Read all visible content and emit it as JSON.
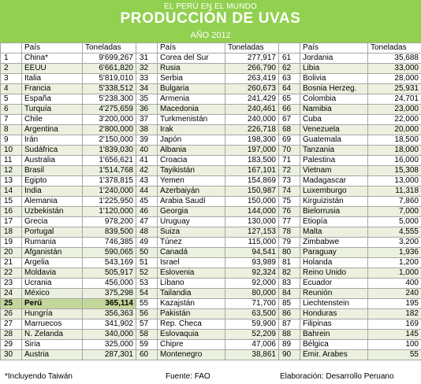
{
  "header": {
    "supertitle": "EL PERÚ EN EL MUNDO",
    "title": "PRODUCCIÓN  DE UVAS",
    "subtitle": "AÑO 2012"
  },
  "chart_data": {
    "type": "table",
    "columns": [
      "#",
      "País",
      "Toneladas"
    ],
    "highlight_rank": 25,
    "rows": [
      [
        1,
        "China*",
        "9'699,267"
      ],
      [
        2,
        "EEUU",
        "6'661,820"
      ],
      [
        3,
        "Italia",
        "5'819,010"
      ],
      [
        4,
        "Francia",
        "5'338,512"
      ],
      [
        5,
        "España",
        "5'238,300"
      ],
      [
        6,
        "Turquía",
        "4'275,659"
      ],
      [
        7,
        "Chile",
        "3'200,000"
      ],
      [
        8,
        "Argentina",
        "2'800,000"
      ],
      [
        9,
        "Irán",
        "2'150,000"
      ],
      [
        10,
        "Sudáfrica",
        "1'839,030"
      ],
      [
        11,
        "Australia",
        "1'656,621"
      ],
      [
        12,
        "Brasil",
        "1'514,768"
      ],
      [
        13,
        "Egipto",
        "1'378,815"
      ],
      [
        14,
        "India",
        "1'240,000"
      ],
      [
        15,
        "Alemania",
        "1'225,950"
      ],
      [
        16,
        "Uzbekistán",
        "1'120,000"
      ],
      [
        17,
        "Grecia",
        "978,200"
      ],
      [
        18,
        "Portugal",
        "839,500"
      ],
      [
        19,
        "Rumania",
        "746,385"
      ],
      [
        20,
        "Afganistán",
        "590,065"
      ],
      [
        21,
        "Argelia",
        "543,169"
      ],
      [
        22,
        "Moldavia",
        "505,917"
      ],
      [
        23,
        "Ucrania",
        "456,000"
      ],
      [
        24,
        "México",
        "375,298"
      ],
      [
        25,
        "Perú",
        "365,114"
      ],
      [
        26,
        "Hungría",
        "356,363"
      ],
      [
        27,
        "Marruecos",
        "341,902"
      ],
      [
        28,
        "N. Zelanda",
        "340,000"
      ],
      [
        29,
        "Siria",
        "325,000"
      ],
      [
        30,
        "Austria",
        "287,301"
      ],
      [
        31,
        "Corea del Sur",
        "277,917"
      ],
      [
        32,
        "Rusia",
        "266,790"
      ],
      [
        33,
        "Serbia",
        "263,419"
      ],
      [
        34,
        "Bulgaria",
        "260,673"
      ],
      [
        35,
        "Armenia",
        "241,429"
      ],
      [
        36,
        "Macedonia",
        "240,461"
      ],
      [
        37,
        "Turkmenistán",
        "240,000"
      ],
      [
        38,
        "Irak",
        "226,718"
      ],
      [
        39,
        "Japón",
        "198,300"
      ],
      [
        40,
        "Albania",
        "197,000"
      ],
      [
        41,
        "Croacia",
        "183,500"
      ],
      [
        42,
        "Tayikistán",
        "167,101"
      ],
      [
        43,
        "Yemen",
        "154,869"
      ],
      [
        44,
        "Azerbaiyán",
        "150,987"
      ],
      [
        45,
        "Arabia Saudí",
        "150,000"
      ],
      [
        46,
        "Georgia",
        "144,000"
      ],
      [
        47,
        "Uruguay",
        "130,000"
      ],
      [
        48,
        "Suiza",
        "127,153"
      ],
      [
        49,
        "Túnez",
        "115,000"
      ],
      [
        50,
        "Canadá",
        "94,541"
      ],
      [
        51,
        "Israel",
        "93,989"
      ],
      [
        52,
        "Eslovenia",
        "92,324"
      ],
      [
        53,
        "Líbano",
        "92,000"
      ],
      [
        54,
        "Tailandia",
        "80,000"
      ],
      [
        55,
        "Kazajstán",
        "71,700"
      ],
      [
        56,
        "Pakistán",
        "63,500"
      ],
      [
        57,
        "Rep. Checa",
        "59,900"
      ],
      [
        58,
        "Eslovaquia",
        "52,209"
      ],
      [
        59,
        "Chipre",
        "47,006"
      ],
      [
        60,
        "Montenegro",
        "38,861"
      ],
      [
        61,
        "Jordania",
        "35,688"
      ],
      [
        62,
        "Libia",
        "33,000"
      ],
      [
        63,
        "Bolivia",
        "28,000"
      ],
      [
        64,
        "Bosnia Herzeg.",
        "25,931"
      ],
      [
        65,
        "Colombia",
        "24,701"
      ],
      [
        66,
        "Namibia",
        "23,000"
      ],
      [
        67,
        "Cuba",
        "22,000"
      ],
      [
        68,
        "Venezuela",
        "20,000"
      ],
      [
        69,
        "Guatemala",
        "18,500"
      ],
      [
        70,
        "Tanzania",
        "18,000"
      ],
      [
        71,
        "Palestina",
        "16,000"
      ],
      [
        72,
        "Vietnam",
        "15,308"
      ],
      [
        73,
        "Madagascar",
        "13,000"
      ],
      [
        74,
        "Luxemburgo",
        "11,318"
      ],
      [
        75,
        "Kirguizistán",
        "7,860"
      ],
      [
        76,
        "Bielorrusia",
        "7,000"
      ],
      [
        77,
        "Etiopía",
        "5,000"
      ],
      [
        78,
        "Malta",
        "4,555"
      ],
      [
        79,
        "Zimbabwe",
        "3,200"
      ],
      [
        80,
        "Paraguay",
        "1,936"
      ],
      [
        81,
        "Holanda",
        "1,200"
      ],
      [
        82,
        "Reino Unido",
        "1,000"
      ],
      [
        83,
        "Ecuador",
        "400"
      ],
      [
        84,
        "Reunión",
        "240"
      ],
      [
        85,
        "Liechtenstein",
        "195"
      ],
      [
        86,
        "Honduras",
        "182"
      ],
      [
        87,
        "Filipinas",
        "169"
      ],
      [
        88,
        "Bahrein",
        "145"
      ],
      [
        89,
        "Bélgica",
        "100"
      ],
      [
        90,
        "Emir. Arabes",
        "55"
      ]
    ]
  },
  "footer": {
    "note": "*Incluyendo Taiwán",
    "source": "Fuente: FAO",
    "credit": "Elaboración: Desarrollo Peruano"
  }
}
